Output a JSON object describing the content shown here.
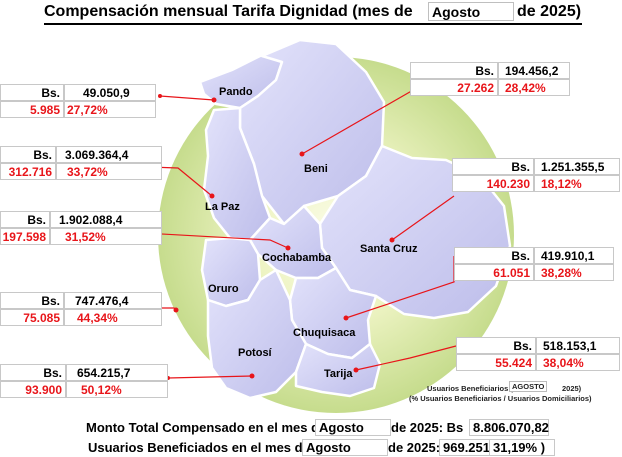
{
  "title": {
    "prefix": "Compensación mensual Tarifa Dignidad (mes de",
    "month": "Agosto",
    "suffix": "de 2025)"
  },
  "departments": [
    {
      "name": "Pando",
      "currency": "Bs.",
      "amount": "49.050,9",
      "users": "5.985",
      "percent": "27,72%"
    },
    {
      "name": "Beni",
      "currency": "Bs.",
      "amount": "194.456,2",
      "users": "27.262",
      "percent": "28,42%"
    },
    {
      "name": "La Paz",
      "currency": "Bs.",
      "amount": "3.069.364,4",
      "users": "312.716",
      "percent": "33,72%"
    },
    {
      "name": "Santa Cruz",
      "currency": "Bs.",
      "amount": "1.251.355,5",
      "users": "140.230",
      "percent": "18,12%"
    },
    {
      "name": "Cochabamba",
      "currency": "Bs.",
      "amount": "1.902.088,4",
      "users": "197.598",
      "percent": "31,52%"
    },
    {
      "name": "Chuquisaca",
      "currency": "Bs.",
      "amount": "419.910,1",
      "users": "61.051",
      "percent": "38,28%"
    },
    {
      "name": "Oruro",
      "currency": "Bs.",
      "amount": "747.476,4",
      "users": "75.085",
      "percent": "44,34%"
    },
    {
      "name": "Tarija",
      "currency": "Bs.",
      "amount": "518.153,1",
      "users": "55.424",
      "percent": "38,04%"
    },
    {
      "name": "Potosí",
      "currency": "Bs.",
      "amount": "654.215,7",
      "users": "93.900",
      "percent": "50,12%"
    }
  ],
  "legend_note": {
    "line1_prefix": "Usuarios Beneficiarios (",
    "line1_month": "AGOSTO",
    "line1_suffix": "2025)",
    "line2": "(% Usuarios Beneficiarios / Usuarios Domiciliarios)"
  },
  "totals": {
    "amount_prefix": "Monto Total Compensado en el mes de",
    "amount_month": "Agosto",
    "amount_suffix": "de 2025: Bs",
    "amount_value": "8.806.070,82",
    "users_prefix": "Usuarios Beneficiados en el mes de",
    "users_month": "Agosto",
    "users_suffix": "de 2025:",
    "users_value": "969.251(",
    "users_percent": "31,19% )"
  },
  "colors": {
    "map_fill": "#c9c9ef",
    "map_highlight": "#e6e6fa",
    "disc_center": "#f9fbe0",
    "disc_edge": "#c6dc8d",
    "leader_line": "#e8151a"
  }
}
